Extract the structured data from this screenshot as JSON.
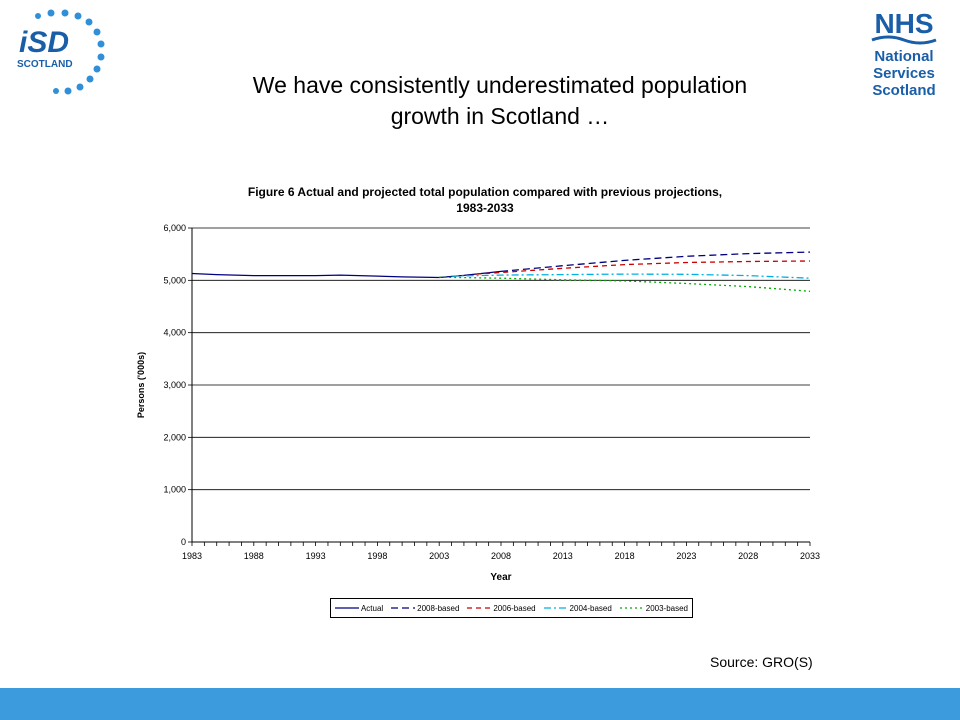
{
  "logos": {
    "isd": {
      "letters": "iSD",
      "word": "SCOTLAND"
    },
    "nhs": {
      "top": "NHS",
      "lines": [
        "National",
        "Services",
        "Scotland"
      ]
    }
  },
  "colors": {
    "brand_blue": "#1a5ea8",
    "dots_blue": "#2f8fd8",
    "bar_blue": "#3b9bdc"
  },
  "slide_title_line1": "We have consistently underestimated population",
  "slide_title_line2": "growth in Scotland …",
  "source": "Source: GRO(S)",
  "chart_data": {
    "type": "line",
    "title_line1": "Figure 6 Actual and projected total population compared with previous projections,",
    "title_line2": "1983-2033",
    "xlabel": "Year",
    "ylabel": "Persons ('000s)",
    "xlim": [
      1983,
      2033
    ],
    "ylim": [
      0,
      6000
    ],
    "x_ticks": [
      "1983",
      "1988",
      "1993",
      "1998",
      "2003",
      "2008",
      "2013",
      "2018",
      "2023",
      "2028",
      "2033"
    ],
    "y_ticks": [
      "0",
      "1,000",
      "2,000",
      "3,000",
      "4,000",
      "5,000",
      "6,000"
    ],
    "grid": "horizontal",
    "legend_position": "bottom",
    "series": [
      {
        "name": "Actual",
        "color": "#000080",
        "dash": "solid",
        "x": [
          1983,
          1985,
          1988,
          1990,
          1993,
          1995,
          1998,
          2000,
          2003,
          2005,
          2008
        ],
        "y": [
          5130,
          5110,
          5090,
          5090,
          5090,
          5100,
          5080,
          5065,
          5055,
          5095,
          5170
        ]
      },
      {
        "name": "2008-based",
        "color": "#000080",
        "dash": "long",
        "x": [
          2008,
          2013,
          2018,
          2023,
          2028,
          2033
        ],
        "y": [
          5170,
          5280,
          5380,
          5460,
          5510,
          5540
        ]
      },
      {
        "name": "2006-based",
        "color": "#cc0000",
        "dash": "medium",
        "x": [
          2006,
          2008,
          2013,
          2018,
          2023,
          2028,
          2033
        ],
        "y": [
          5120,
          5150,
          5230,
          5300,
          5340,
          5360,
          5370
        ]
      },
      {
        "name": "2004-based",
        "color": "#00b0e0",
        "dash": "dashdot",
        "x": [
          2004,
          2008,
          2013,
          2018,
          2023,
          2028,
          2033
        ],
        "y": [
          5080,
          5100,
          5110,
          5120,
          5115,
          5090,
          5040
        ]
      },
      {
        "name": "2003-based",
        "color": "#00aa00",
        "dash": "dotted",
        "x": [
          2003,
          2008,
          2013,
          2018,
          2023,
          2028,
          2033
        ],
        "y": [
          5060,
          5040,
          5010,
          4990,
          4940,
          4880,
          4790
        ]
      }
    ]
  }
}
